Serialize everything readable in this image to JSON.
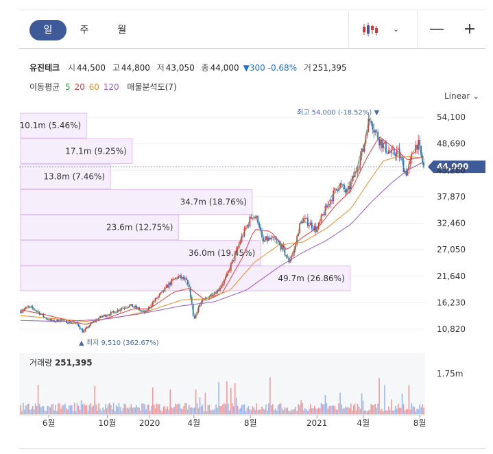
{
  "toolbar": {
    "periods": [
      "일",
      "주",
      "월"
    ],
    "active_period": "일",
    "candle_icon": "candlestick-icon",
    "dropdown_icon": "chevron-down-icon",
    "zoom_out": "—",
    "zoom_in": "+"
  },
  "stock": {
    "name": "유진테크",
    "open_label": "시",
    "open": "44,500",
    "high_label": "고",
    "high": "44,800",
    "low_label": "저",
    "low": "43,050",
    "close_label": "종",
    "close": "44,000",
    "change_arrow": "▼",
    "change": "300",
    "change_pct": "-0.68%",
    "volume_label": "거",
    "volume": "251,395"
  },
  "moving_average": {
    "label": "이동평균",
    "periods": [
      "5",
      "20",
      "60",
      "120"
    ],
    "colors": [
      "#2e9e3e",
      "#e03a3a",
      "#f08a24",
      "#9b59c9"
    ],
    "volume_profile_label": "매물분석도(7)"
  },
  "scale_mode": "Linear",
  "chart_data": {
    "type": "candlestick",
    "price_ticks": [
      54100,
      48690,
      43280,
      37870,
      32460,
      27050,
      21640,
      16230,
      10820
    ],
    "price_tick_labels": [
      "54,100",
      "48,690",
      "43,280",
      "37,870",
      "32,460",
      "27,050",
      "21,640",
      "16,230",
      "10,820"
    ],
    "ylim": [
      9000,
      55000
    ],
    "current_price": 44000,
    "current_price_label": "44,000",
    "high_annotation": "최고 54,000 (-18.52%) ▼",
    "low_annotation": "▲ 최저 9,510 (362.67%)",
    "x_ticks": [
      {
        "label": "6월",
        "t": 0.07
      },
      {
        "label": "10월",
        "t": 0.215
      },
      {
        "label": "2020",
        "t": 0.32
      },
      {
        "label": "4월",
        "t": 0.43
      },
      {
        "label": "8월",
        "t": 0.57
      },
      {
        "label": "2021",
        "t": 0.735
      },
      {
        "label": "4월",
        "t": 0.85
      },
      {
        "label": "8월",
        "t": 0.99
      }
    ],
    "price_path": [
      [
        0.0,
        14500
      ],
      [
        0.02,
        15400
      ],
      [
        0.04,
        14600
      ],
      [
        0.06,
        13200
      ],
      [
        0.08,
        12400
      ],
      [
        0.1,
        12700
      ],
      [
        0.12,
        12200
      ],
      [
        0.14,
        12000
      ],
      [
        0.155,
        10200
      ],
      [
        0.17,
        11600
      ],
      [
        0.19,
        12900
      ],
      [
        0.21,
        13700
      ],
      [
        0.23,
        14200
      ],
      [
        0.25,
        15100
      ],
      [
        0.27,
        15700
      ],
      [
        0.29,
        15100
      ],
      [
        0.3,
        14400
      ],
      [
        0.31,
        14200
      ],
      [
        0.33,
        16500
      ],
      [
        0.35,
        18200
      ],
      [
        0.37,
        20200
      ],
      [
        0.39,
        21600
      ],
      [
        0.41,
        20800
      ],
      [
        0.42,
        18600
      ],
      [
        0.43,
        12600
      ],
      [
        0.44,
        15200
      ],
      [
        0.45,
        16500
      ],
      [
        0.47,
        17700
      ],
      [
        0.49,
        18800
      ],
      [
        0.51,
        21400
      ],
      [
        0.53,
        25600
      ],
      [
        0.55,
        29900
      ],
      [
        0.565,
        32500
      ],
      [
        0.575,
        34200
      ],
      [
        0.59,
        33000
      ],
      [
        0.6,
        28500
      ],
      [
        0.61,
        29200
      ],
      [
        0.63,
        29000
      ],
      [
        0.65,
        27400
      ],
      [
        0.665,
        24600
      ],
      [
        0.68,
        27200
      ],
      [
        0.69,
        31500
      ],
      [
        0.7,
        33300
      ],
      [
        0.72,
        32200
      ],
      [
        0.735,
        31000
      ],
      [
        0.75,
        34200
      ],
      [
        0.77,
        37500
      ],
      [
        0.79,
        40500
      ],
      [
        0.81,
        38600
      ],
      [
        0.83,
        42800
      ],
      [
        0.84,
        45500
      ],
      [
        0.85,
        47500
      ],
      [
        0.86,
        52600
      ],
      [
        0.87,
        53900
      ],
      [
        0.875,
        52000
      ],
      [
        0.89,
        49500
      ],
      [
        0.905,
        47800
      ],
      [
        0.92,
        46500
      ],
      [
        0.935,
        47200
      ],
      [
        0.945,
        45100
      ],
      [
        0.955,
        42700
      ],
      [
        0.965,
        44200
      ],
      [
        0.975,
        47700
      ],
      [
        0.985,
        48900
      ],
      [
        0.995,
        45500
      ],
      [
        1.0,
        44000
      ]
    ],
    "ma_paths": {
      "ma20": [
        [
          0.0,
          14800
        ],
        [
          0.06,
          13800
        ],
        [
          0.12,
          12600
        ],
        [
          0.16,
          11800
        ],
        [
          0.22,
          13200
        ],
        [
          0.28,
          15000
        ],
        [
          0.32,
          15000
        ],
        [
          0.38,
          18400
        ],
        [
          0.42,
          19200
        ],
        [
          0.46,
          16600
        ],
        [
          0.5,
          18200
        ],
        [
          0.55,
          25400
        ],
        [
          0.58,
          31200
        ],
        [
          0.62,
          30800
        ],
        [
          0.66,
          27000
        ],
        [
          0.7,
          29600
        ],
        [
          0.74,
          31800
        ],
        [
          0.78,
          36000
        ],
        [
          0.82,
          39200
        ],
        [
          0.86,
          46000
        ],
        [
          0.89,
          50200
        ],
        [
          0.93,
          47500
        ],
        [
          0.96,
          45400
        ],
        [
          1.0,
          46000
        ]
      ],
      "ma60": [
        [
          0.0,
          13600
        ],
        [
          0.08,
          13000
        ],
        [
          0.16,
          12400
        ],
        [
          0.24,
          13200
        ],
        [
          0.32,
          14600
        ],
        [
          0.4,
          16800
        ],
        [
          0.46,
          17000
        ],
        [
          0.52,
          18800
        ],
        [
          0.58,
          24500
        ],
        [
          0.64,
          28000
        ],
        [
          0.7,
          28600
        ],
        [
          0.76,
          31500
        ],
        [
          0.82,
          35500
        ],
        [
          0.86,
          40500
        ],
        [
          0.9,
          45200
        ],
        [
          0.94,
          46200
        ],
        [
          1.0,
          45800
        ]
      ],
      "ma120": [
        [
          0.0,
          12600
        ],
        [
          0.1,
          12400
        ],
        [
          0.2,
          12800
        ],
        [
          0.3,
          14000
        ],
        [
          0.4,
          15600
        ],
        [
          0.48,
          16400
        ],
        [
          0.56,
          18800
        ],
        [
          0.64,
          23500
        ],
        [
          0.7,
          26500
        ],
        [
          0.76,
          29000
        ],
        [
          0.82,
          32300
        ],
        [
          0.87,
          36800
        ],
        [
          0.92,
          40700
        ],
        [
          0.96,
          43300
        ],
        [
          1.0,
          45000
        ]
      ]
    },
    "volume_profile": [
      {
        "label": "10.1m (5.46%)",
        "price_lo": 49800,
        "price_hi": 55000,
        "width": 0.188
      },
      {
        "label": "17.1m (9.25%)",
        "price_lo": 44600,
        "price_hi": 49800,
        "width": 0.318
      },
      {
        "label": "13.8m (7.46%)",
        "price_lo": 39400,
        "price_hi": 44600,
        "width": 0.256
      },
      {
        "label": "34.7m (18.76%)",
        "price_lo": 34200,
        "price_hi": 39400,
        "width": 0.66
      },
      {
        "label": "23.6m (12.75%)",
        "price_lo": 29000,
        "price_hi": 34200,
        "width": 0.45
      },
      {
        "label": "36.0m (19.45%)",
        "price_lo": 23800,
        "price_hi": 29000,
        "width": 0.684
      },
      {
        "label": "49.7m (26.86%)",
        "price_lo": 18600,
        "price_hi": 23800,
        "width": 0.939
      }
    ],
    "volume": {
      "title": "거래량",
      "value": "251,395",
      "tick_label": "1.75m",
      "ylim": [
        0,
        2200000
      ]
    }
  }
}
